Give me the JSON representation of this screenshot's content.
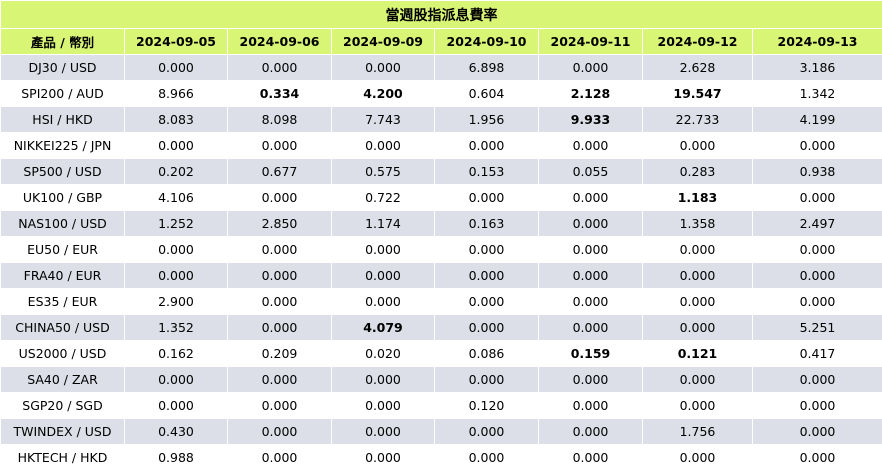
{
  "title": "當週股指派息費率",
  "header": {
    "product_label": "產品  /  幣別",
    "dates": [
      "2024-09-05",
      "2024-09-06",
      "2024-09-09",
      "2024-09-10",
      "2024-09-11",
      "2024-09-12",
      "2024-09-13"
    ]
  },
  "rows": [
    {
      "product": "DJ30 / USD",
      "values": [
        "0.000",
        "0.000",
        "0.000",
        "6.898",
        "0.000",
        "2.628",
        "3.186"
      ],
      "bold": []
    },
    {
      "product": "SPI200 / AUD",
      "values": [
        "8.966",
        "0.334",
        "4.200",
        "0.604",
        "2.128",
        "19.547",
        "1.342"
      ],
      "bold": [
        1,
        2,
        4,
        5
      ]
    },
    {
      "product": "HSI / HKD",
      "values": [
        "8.083",
        "8.098",
        "7.743",
        "1.956",
        "9.933",
        "22.733",
        "4.199"
      ],
      "bold": [
        4
      ]
    },
    {
      "product": "NIKKEI225 / JPN",
      "values": [
        "0.000",
        "0.000",
        "0.000",
        "0.000",
        "0.000",
        "0.000",
        "0.000"
      ],
      "bold": []
    },
    {
      "product": "SP500 / USD",
      "values": [
        "0.202",
        "0.677",
        "0.575",
        "0.153",
        "0.055",
        "0.283",
        "0.938"
      ],
      "bold": []
    },
    {
      "product": "UK100 / GBP",
      "values": [
        "4.106",
        "0.000",
        "0.722",
        "0.000",
        "0.000",
        "1.183",
        "0.000"
      ],
      "bold": [
        5
      ]
    },
    {
      "product": "NAS100 / USD",
      "values": [
        "1.252",
        "2.850",
        "1.174",
        "0.163",
        "0.000",
        "1.358",
        "2.497"
      ],
      "bold": []
    },
    {
      "product": "EU50 / EUR",
      "values": [
        "0.000",
        "0.000",
        "0.000",
        "0.000",
        "0.000",
        "0.000",
        "0.000"
      ],
      "bold": []
    },
    {
      "product": "FRA40 / EUR",
      "values": [
        "0.000",
        "0.000",
        "0.000",
        "0.000",
        "0.000",
        "0.000",
        "0.000"
      ],
      "bold": []
    },
    {
      "product": "ES35 / EUR",
      "values": [
        "2.900",
        "0.000",
        "0.000",
        "0.000",
        "0.000",
        "0.000",
        "0.000"
      ],
      "bold": []
    },
    {
      "product": "CHINA50 / USD",
      "values": [
        "1.352",
        "0.000",
        "4.079",
        "0.000",
        "0.000",
        "0.000",
        "5.251"
      ],
      "bold": [
        2
      ]
    },
    {
      "product": "US2000 / USD",
      "values": [
        "0.162",
        "0.209",
        "0.020",
        "0.086",
        "0.159",
        "0.121",
        "0.417"
      ],
      "bold": [
        4,
        5
      ]
    },
    {
      "product": "SA40 / ZAR",
      "values": [
        "0.000",
        "0.000",
        "0.000",
        "0.000",
        "0.000",
        "0.000",
        "0.000"
      ],
      "bold": []
    },
    {
      "product": "SGP20 / SGD",
      "values": [
        "0.000",
        "0.000",
        "0.000",
        "0.120",
        "0.000",
        "0.000",
        "0.000"
      ],
      "bold": []
    },
    {
      "product": "TWINDEX / USD",
      "values": [
        "0.430",
        "0.000",
        "0.000",
        "0.000",
        "0.000",
        "1.756",
        "0.000"
      ],
      "bold": []
    },
    {
      "product": "HKTECH / HKD",
      "values": [
        "0.988",
        "0.000",
        "0.000",
        "0.000",
        "0.000",
        "0.000",
        "0.000"
      ],
      "bold": []
    }
  ]
}
